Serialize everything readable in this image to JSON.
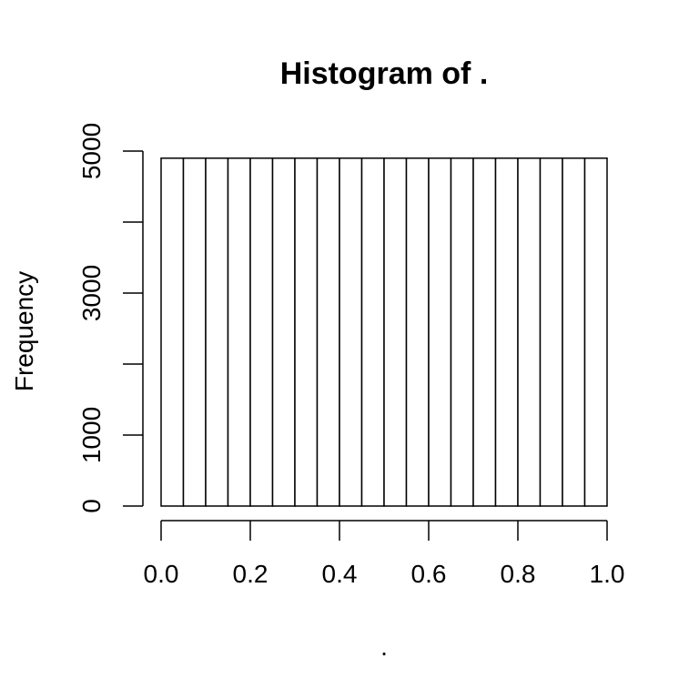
{
  "chart_data": {
    "type": "bar",
    "title": "Histogram of .",
    "xlabel": ".",
    "ylabel": "Frequency",
    "bin_edges": [
      0,
      0.05,
      0.1,
      0.15,
      0.2,
      0.25,
      0.3,
      0.35,
      0.4,
      0.45,
      0.5,
      0.55,
      0.6,
      0.65,
      0.7,
      0.75,
      0.8,
      0.85,
      0.9,
      0.95,
      1.0
    ],
    "values": [
      4900,
      4900,
      4900,
      4900,
      4900,
      4900,
      4900,
      4900,
      4900,
      4900,
      4900,
      4900,
      4900,
      4900,
      4900,
      4900,
      4900,
      4900,
      4900,
      4900
    ],
    "xlim": [
      0,
      1
    ],
    "ylim": [
      0,
      5000
    ],
    "x_ticks": [
      0.0,
      0.2,
      0.4,
      0.6,
      0.8,
      1.0
    ],
    "x_tick_labels": [
      "0.0",
      "0.2",
      "0.4",
      "0.6",
      "0.8",
      "1.0"
    ],
    "y_ticks": [
      0,
      1000,
      2000,
      3000,
      4000,
      5000
    ],
    "y_tick_labels": [
      "0",
      "1000",
      "",
      "3000",
      "",
      "5000"
    ],
    "grid": false,
    "legend": "none"
  }
}
